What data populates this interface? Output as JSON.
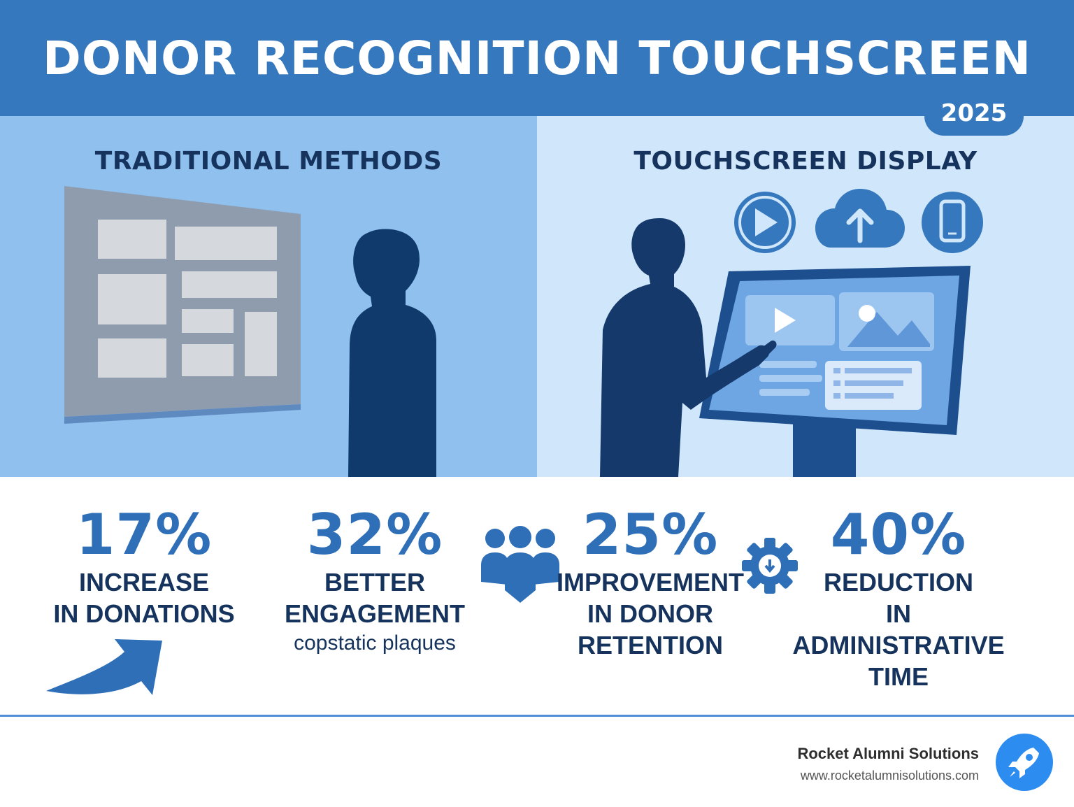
{
  "header": {
    "title": "DONOR RECOGNITION TOUCHSCREEN",
    "year": "2025"
  },
  "left_panel": {
    "heading": "TRADITIONAL METHODS"
  },
  "right_panel": {
    "heading": "TOUCHSCREEN DISPLAY",
    "icons": [
      "play-icon",
      "cloud-upload-icon",
      "smartphone-icon"
    ]
  },
  "stats": [
    {
      "value": "17%",
      "label_line1": "INCREASE",
      "label_line2": "IN DONATIONS",
      "icon": "arrow-up-right-icon"
    },
    {
      "value": "32%",
      "label_line1": "BETTER",
      "label_line2": "ENGAGEMENT",
      "sub": "copstatic plaques"
    },
    {
      "value": "25%",
      "label_line1": "IMPROVEMENT",
      "label_line2": "IN DONOR",
      "label_line3": "RETENTION",
      "icon": "people-group-icon"
    },
    {
      "value": "40%",
      "label_line1": "REDUCTION",
      "label_line2": "IN ADMINISTRATIVE",
      "label_line3": "TIME",
      "icon": "gear-download-icon"
    }
  ],
  "footer": {
    "brand_name": "Rocket Alumni Solutions",
    "brand_url": "www.rocketalumnisolutions.com",
    "logo_icon": "rocket-icon"
  },
  "colors": {
    "header_blue": "#3578bd",
    "left_panel": "#8fc0ee",
    "right_panel": "#cfe6fb",
    "navy": "#15335c",
    "accent_blue": "#2f6fb7"
  }
}
